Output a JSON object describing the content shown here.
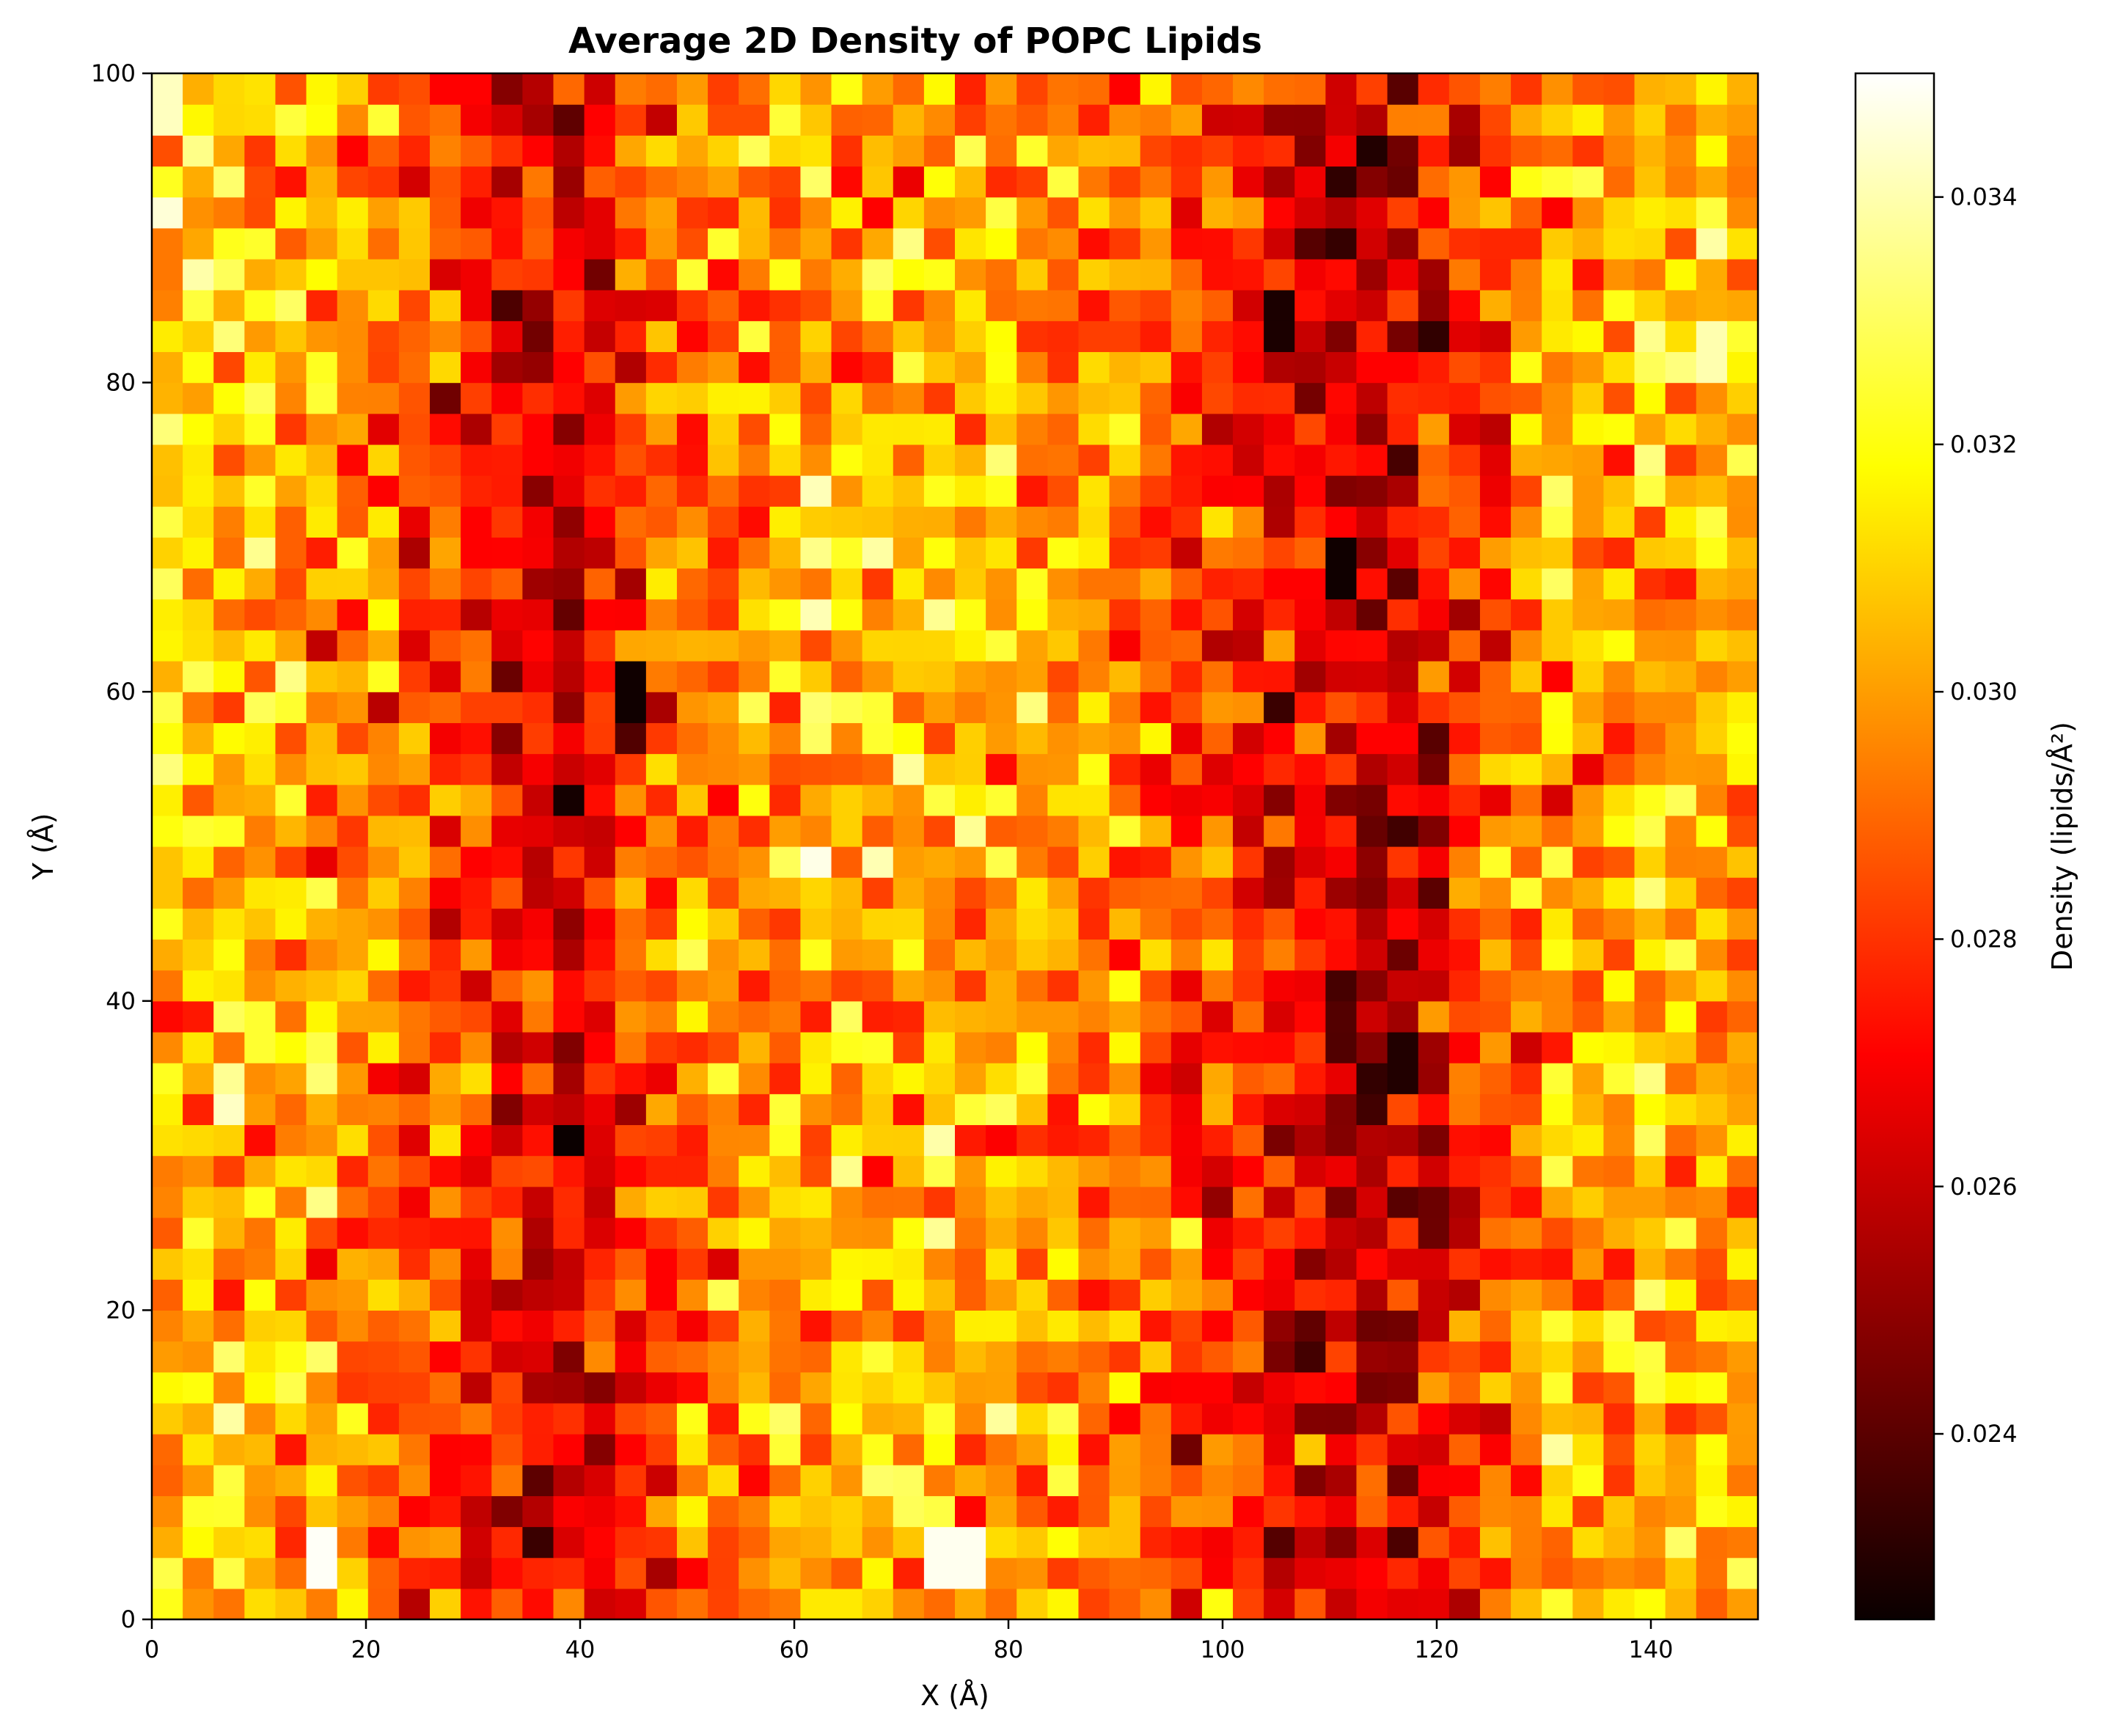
{
  "chart_data": {
    "type": "heatmap",
    "title": "Average 2D Density of POPC Lipids",
    "xlabel": "X (Å)",
    "ylabel": "Y (Å)",
    "colorbar_label": "Density (lipids/Å²)",
    "xlim": [
      0,
      150
    ],
    "ylim": [
      0,
      100
    ],
    "xticks": [
      0,
      20,
      40,
      60,
      80,
      100,
      120,
      140
    ],
    "yticks": [
      0,
      20,
      40,
      60,
      80,
      100
    ],
    "colorbar_ticks": [
      0.024,
      0.026,
      0.028,
      0.03,
      0.032,
      0.034
    ],
    "color_range": [
      0.0225,
      0.035
    ],
    "colormap": "hot",
    "grid": false,
    "bins": {
      "nx": 52,
      "ny": 50
    },
    "column_profile": [
      {
        "x": 0,
        "density": 0.0306
      },
      {
        "x": 10,
        "density": 0.0307
      },
      {
        "x": 20,
        "density": 0.0298
      },
      {
        "x": 25,
        "density": 0.0288
      },
      {
        "x": 30,
        "density": 0.0276
      },
      {
        "x": 35,
        "density": 0.0268
      },
      {
        "x": 38,
        "density": 0.0264
      },
      {
        "x": 42,
        "density": 0.027
      },
      {
        "x": 46,
        "density": 0.0282
      },
      {
        "x": 50,
        "density": 0.0292
      },
      {
        "x": 60,
        "density": 0.0303
      },
      {
        "x": 70,
        "density": 0.0305
      },
      {
        "x": 80,
        "density": 0.0302
      },
      {
        "x": 90,
        "density": 0.0294
      },
      {
        "x": 95,
        "density": 0.0285
      },
      {
        "x": 100,
        "density": 0.0278
      },
      {
        "x": 105,
        "density": 0.027
      },
      {
        "x": 110,
        "density": 0.0262
      },
      {
        "x": 114,
        "density": 0.0256
      },
      {
        "x": 118,
        "density": 0.0262
      },
      {
        "x": 122,
        "density": 0.0277
      },
      {
        "x": 126,
        "density": 0.029
      },
      {
        "x": 130,
        "density": 0.03
      },
      {
        "x": 140,
        "density": 0.0305
      },
      {
        "x": 150,
        "density": 0.03
      }
    ],
    "min_cells": [
      {
        "x": 38.5,
        "y": 31,
        "density": 0.0225
      },
      {
        "x": 44,
        "y": 60,
        "density": 0.0226
      },
      {
        "x": 111,
        "y": 68,
        "density": 0.0226
      },
      {
        "x": 105,
        "y": 84,
        "density": 0.0228
      },
      {
        "x": 117,
        "y": 36,
        "density": 0.0229
      }
    ],
    "max_cells": [
      {
        "x": 17,
        "y": 4,
        "density": 0.0349
      },
      {
        "x": 75,
        "y": 4,
        "density": 0.0348
      },
      {
        "x": 62,
        "y": 49,
        "density": 0.0347
      },
      {
        "x": 1.5,
        "y": 91,
        "density": 0.0345
      },
      {
        "x": 1.5,
        "y": 98,
        "density": 0.0342
      },
      {
        "x": 146.5,
        "y": 82,
        "density": 0.034
      }
    ]
  }
}
